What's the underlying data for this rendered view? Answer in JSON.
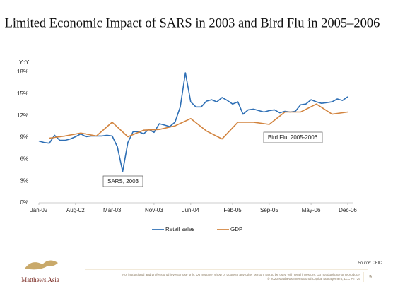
{
  "chart_data": {
    "type": "line",
    "title": "Limited Economic Impact of SARS in 2003 and Bird Flu in 2005–2006",
    "y_label": "YoY",
    "xlim": [
      2002.0,
      2006.917
    ],
    "xticks": [
      {
        "value": 2002.0,
        "label": "Jan-02"
      },
      {
        "value": 2002.583,
        "label": "Aug-02"
      },
      {
        "value": 2003.167,
        "label": "Mar-03"
      },
      {
        "value": 2003.833,
        "label": "Nov-03"
      },
      {
        "value": 2004.417,
        "label": "Jun-04"
      },
      {
        "value": 2005.083,
        "label": "Feb-05"
      },
      {
        "value": 2005.667,
        "label": "Sep-05"
      },
      {
        "value": 2006.333,
        "label": "May-06"
      },
      {
        "value": 2006.917,
        "label": "Dec-06"
      }
    ],
    "ylim": [
      0,
      18
    ],
    "yticks": [
      {
        "value": 0,
        "label": "0%"
      },
      {
        "value": 3,
        "label": "3%"
      },
      {
        "value": 6,
        "label": "6%"
      },
      {
        "value": 9,
        "label": "9%"
      },
      {
        "value": 12,
        "label": "12%"
      },
      {
        "value": 15,
        "label": "15%"
      },
      {
        "value": 18,
        "label": "18%"
      }
    ],
    "grid": false,
    "legend": "bottom",
    "series": [
      {
        "name": "Retail sales",
        "color": "#2e6fb5",
        "x": [
          2002.0,
          2002.083,
          2002.167,
          2002.25,
          2002.333,
          2002.417,
          2002.5,
          2002.583,
          2002.667,
          2002.75,
          2002.833,
          2002.917,
          2003.0,
          2003.083,
          2003.167,
          2003.25,
          2003.333,
          2003.417,
          2003.5,
          2003.583,
          2003.667,
          2003.75,
          2003.833,
          2003.917,
          2004.0,
          2004.083,
          2004.167,
          2004.25,
          2004.333,
          2004.417,
          2004.5,
          2004.583,
          2004.667,
          2004.75,
          2004.833,
          2004.917,
          2005.0,
          2005.083,
          2005.167,
          2005.25,
          2005.333,
          2005.417,
          2005.5,
          2005.583,
          2005.667,
          2005.75,
          2005.833,
          2005.917,
          2006.0,
          2006.083,
          2006.167,
          2006.25,
          2006.333,
          2006.417,
          2006.5,
          2006.583,
          2006.667,
          2006.75,
          2006.833,
          2006.917
        ],
        "values": [
          8.5,
          8.3,
          8.2,
          9.3,
          8.6,
          8.6,
          8.8,
          9.1,
          9.5,
          9.1,
          9.2,
          9.2,
          9.2,
          9.3,
          9.2,
          7.7,
          4.3,
          8.3,
          9.8,
          9.8,
          9.5,
          10.1,
          9.7,
          10.9,
          10.7,
          10.5,
          11.1,
          13.2,
          17.9,
          13.9,
          13.2,
          13.2,
          14.0,
          14.2,
          13.9,
          14.5,
          14.1,
          13.6,
          13.9,
          12.2,
          12.8,
          12.9,
          12.7,
          12.5,
          12.7,
          12.8,
          12.4,
          12.6,
          12.5,
          12.6,
          13.5,
          13.6,
          14.2,
          13.9,
          13.7,
          13.8,
          13.9,
          14.3,
          14.1,
          14.6
        ]
      },
      {
        "name": "GDP",
        "color": "#d2843f",
        "x": [
          2002.167,
          2002.417,
          2002.667,
          2002.917,
          2003.167,
          2003.417,
          2003.667,
          2003.917,
          2004.167,
          2004.417,
          2004.667,
          2004.917,
          2005.167,
          2005.417,
          2005.667,
          2005.917,
          2006.167,
          2006.417,
          2006.667,
          2006.917
        ],
        "values": [
          8.9,
          9.2,
          9.6,
          9.2,
          11.1,
          9.1,
          10.0,
          10.1,
          10.6,
          11.6,
          9.9,
          8.8,
          11.1,
          11.1,
          10.8,
          12.5,
          12.5,
          13.6,
          12.2,
          12.5
        ]
      }
    ],
    "annotations": [
      "SARS, 2003",
      "Bird Flu, 2005-2006"
    ],
    "source": "Source: CEIC"
  },
  "footer": {
    "logo": "Matthews Asia",
    "disclaimer": "For institutional and professional investor use only. Do not give, show or quote to any other person. Not to be used with retail investors. Do not duplicate or reproduce.",
    "copyright": "© 2020 Matthews International Capital Management, LLC PT726",
    "page": "9"
  }
}
